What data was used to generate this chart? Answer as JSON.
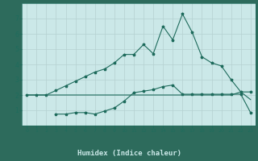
{
  "xlabel": "Humidex (Indice chaleur)",
  "color": "#1e6b5c",
  "bg_color": "#cbe8e8",
  "plot_bg": "#cbe8e8",
  "grid_color": "#b5d0d0",
  "xlabel_bg": "#2d6b5c",
  "xlabel_fg": "#cbe8e8",
  "ylim": [
    0,
    8
  ],
  "xlim": [
    -0.5,
    23.5
  ],
  "yticks": [
    1,
    2,
    3,
    4,
    5,
    6,
    7
  ],
  "xticks": [
    0,
    1,
    2,
    3,
    4,
    5,
    6,
    7,
    8,
    9,
    10,
    11,
    12,
    13,
    14,
    15,
    16,
    17,
    18,
    19,
    20,
    21,
    22,
    23
  ],
  "curve1_x": [
    0,
    1,
    2,
    3,
    4,
    5,
    6,
    7,
    8,
    9,
    10,
    11,
    12,
    13,
    14,
    15,
    16,
    17,
    18,
    19,
    20,
    21,
    22,
    23
  ],
  "curve1_y": [
    2.0,
    2.0,
    2.0,
    2.3,
    2.6,
    2.9,
    3.2,
    3.5,
    3.7,
    4.1,
    4.65,
    4.65,
    5.3,
    4.7,
    6.5,
    5.6,
    7.3,
    6.1,
    4.5,
    4.1,
    3.9,
    3.0,
    2.2,
    2.2
  ],
  "curve2_x": [
    3,
    4,
    5,
    6,
    7,
    8,
    9,
    10,
    11,
    12,
    13,
    14,
    15,
    16,
    17,
    18,
    19,
    20,
    21,
    22,
    23
  ],
  "curve2_y": [
    0.75,
    0.75,
    0.85,
    0.85,
    0.75,
    0.95,
    1.15,
    1.6,
    2.15,
    2.25,
    2.35,
    2.55,
    2.65,
    2.05,
    2.05,
    2.05,
    2.05,
    2.05,
    2.05,
    2.05,
    0.85
  ],
  "curve3_x": [
    0,
    1,
    2,
    3,
    4,
    5,
    6,
    7,
    8,
    9,
    10,
    11,
    12,
    13,
    14,
    15,
    16,
    17,
    18,
    19,
    20,
    21,
    22,
    23
  ],
  "curve3_y": [
    2.0,
    2.0,
    2.0,
    2.0,
    2.0,
    2.0,
    2.0,
    2.0,
    2.0,
    2.0,
    2.0,
    2.0,
    2.0,
    2.0,
    2.0,
    2.0,
    2.0,
    2.0,
    2.0,
    2.0,
    2.0,
    2.0,
    2.2,
    1.7
  ]
}
